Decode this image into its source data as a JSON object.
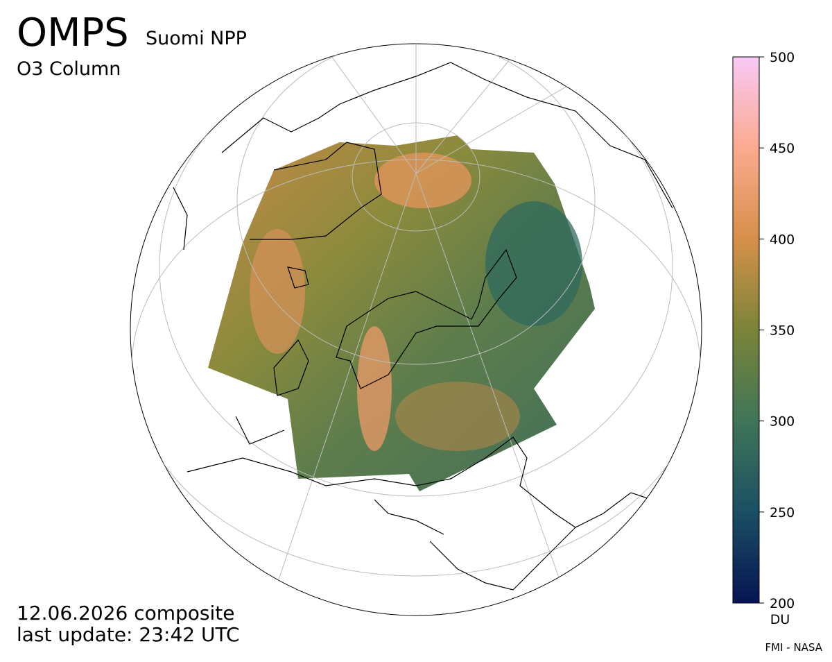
{
  "header": {
    "title": "OMPS",
    "instrument": "Suomi NPP",
    "product": "O3 Column"
  },
  "colorbar": {
    "lim": [
      200,
      500
    ],
    "ticks": [
      200,
      250,
      300,
      350,
      400,
      450,
      500
    ],
    "unit": "DU",
    "colors": [
      "#061453",
      "#1b4f63",
      "#3f7558",
      "#7b8438",
      "#d6904a",
      "#fbaa8f",
      "#f9c9f7"
    ]
  },
  "footer": {
    "date": "12.06.2026 composite",
    "update": "last update: 23:42 UTC"
  },
  "credit": "FMI - NASA"
}
